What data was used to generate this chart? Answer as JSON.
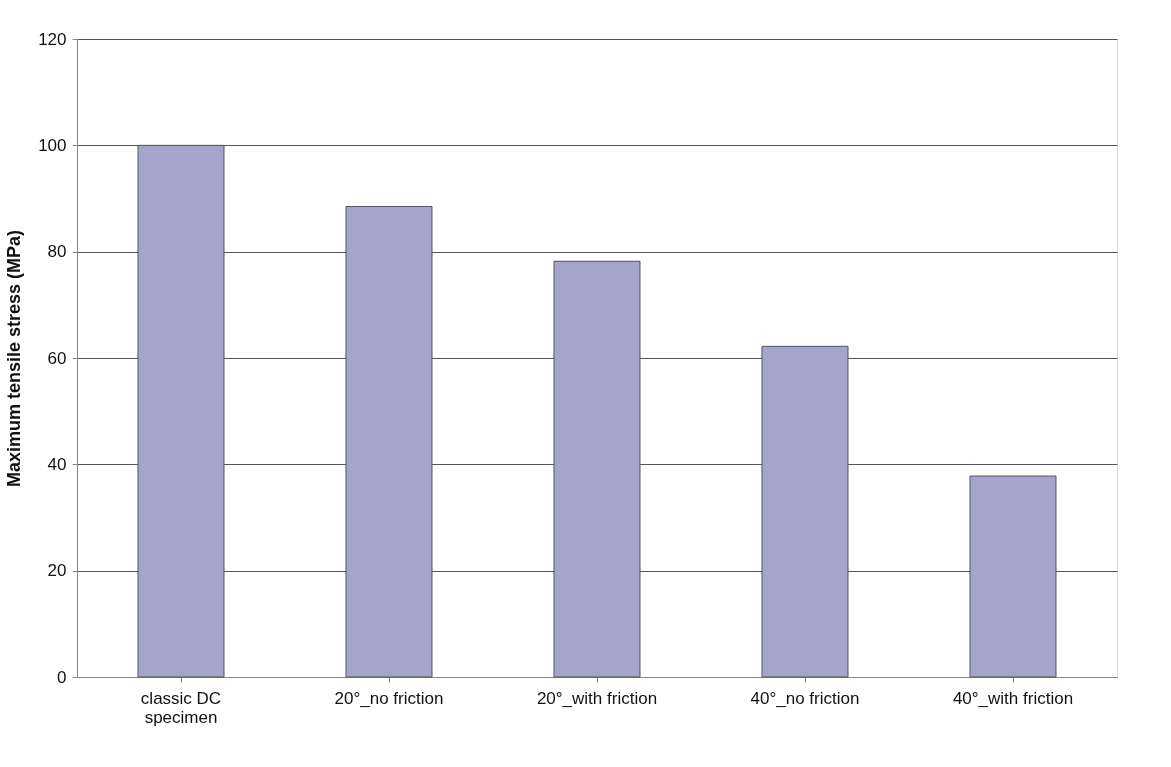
{
  "chart_data": {
    "type": "bar",
    "ylabel": "Maximum tensile stress (MPa)",
    "categories": [
      "classic DC specimen",
      "20°_no friction",
      "20°_with friction",
      "40°_no friction",
      "40°_with friction"
    ],
    "values": [
      100,
      88.5,
      78.2,
      62.2,
      37.8
    ],
    "color": "#a4a4cc",
    "ylim": [
      0,
      120
    ],
    "yticks": [
      0,
      20,
      40,
      60,
      80,
      100,
      120
    ],
    "grid": "y"
  }
}
